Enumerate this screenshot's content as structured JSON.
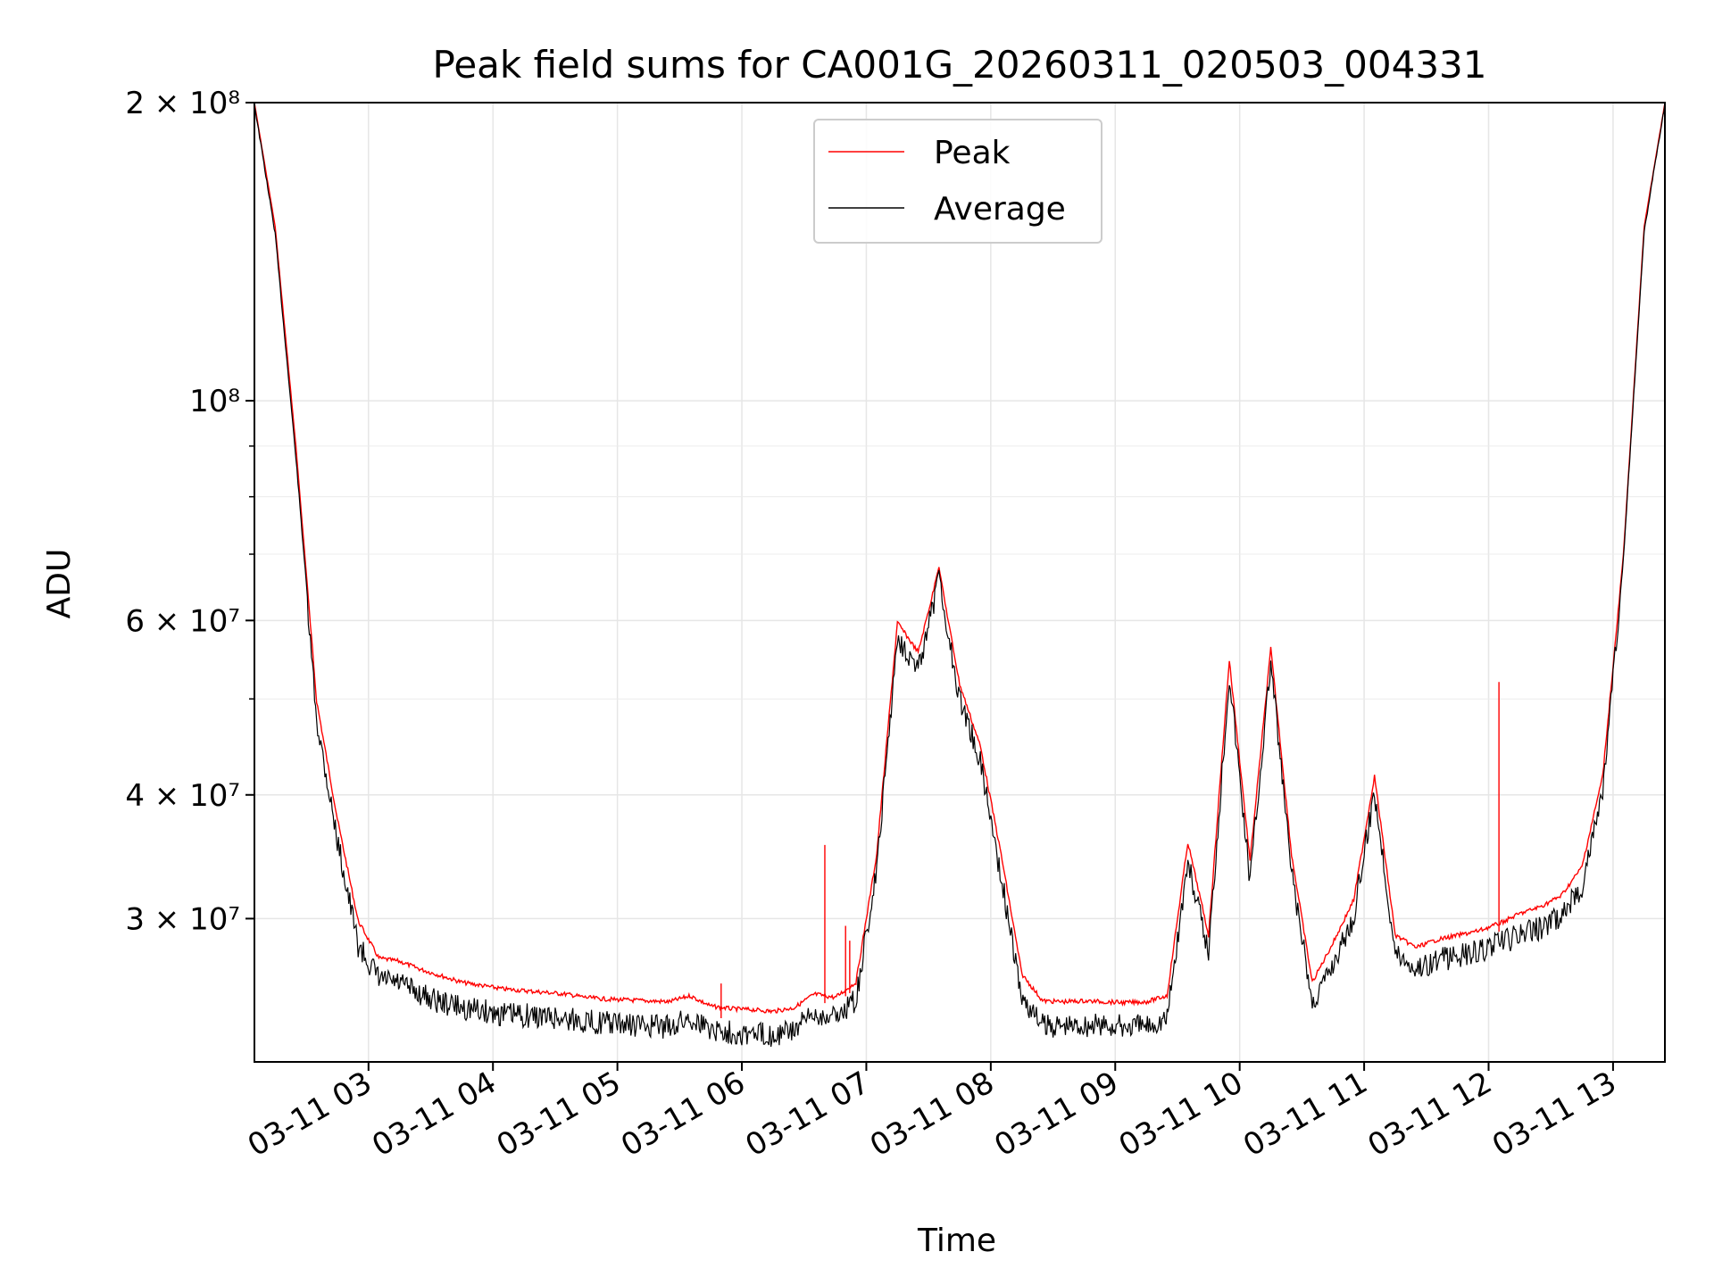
{
  "chart_data": {
    "type": "line",
    "title": "Peak field sums for CA001G_20260311_020503_004331",
    "xlabel": "Time",
    "ylabel": "ADU",
    "yscale": "log",
    "ylim": [
      21500000,
      200000000
    ],
    "xlim": [
      "2026-03-11 02:05",
      "2026-03-11 13:25"
    ],
    "grid": true,
    "legend": "upper center",
    "colors": {
      "Peak": "#ff0000",
      "Average": "#000000"
    },
    "x_ticks": [
      "03-11 03",
      "03-11 04",
      "03-11 05",
      "03-11 06",
      "03-11 07",
      "03-11 08",
      "03-11 09",
      "03-11 10",
      "03-11 11",
      "03-11 12",
      "03-11 13"
    ],
    "y_ticks": [
      {
        "value": 200000000,
        "label": "2 × 10⁸"
      },
      {
        "value": 100000000,
        "label": "10⁸"
      },
      {
        "value": 60000000,
        "label": "6 × 10⁷"
      },
      {
        "value": 40000000,
        "label": "4 × 10⁷"
      },
      {
        "value": 30000000,
        "label": "3 × 10⁷"
      }
    ],
    "x": [
      "02:05",
      "02:15",
      "02:25",
      "02:35",
      "02:45",
      "02:55",
      "03:05",
      "03:15",
      "03:25",
      "03:35",
      "03:45",
      "03:55",
      "04:05",
      "04:15",
      "04:25",
      "04:35",
      "04:45",
      "04:55",
      "05:05",
      "05:15",
      "05:25",
      "05:35",
      "05:45",
      "05:55",
      "06:05",
      "06:15",
      "06:25",
      "06:35",
      "06:45",
      "06:55",
      "07:05",
      "07:15",
      "07:25",
      "07:35",
      "07:45",
      "07:55",
      "08:05",
      "08:15",
      "08:25",
      "08:35",
      "08:45",
      "08:55",
      "09:05",
      "09:15",
      "09:25",
      "09:35",
      "09:45",
      "09:55",
      "10:05",
      "10:15",
      "10:25",
      "10:35",
      "10:45",
      "10:55",
      "11:05",
      "11:15",
      "11:25",
      "11:35",
      "11:45",
      "11:55",
      "12:05",
      "12:15",
      "12:25",
      "12:35",
      "12:45",
      "12:55",
      "13:05",
      "13:15",
      "13:25"
    ],
    "series": [
      {
        "name": "Peak",
        "values": [
          200000000,
          150000000,
          90000000,
          50000000,
          38000000,
          30000000,
          27500000,
          27300000,
          26800000,
          26400000,
          26000000,
          25800000,
          25600000,
          25500000,
          25400000,
          25300000,
          25100000,
          25000000,
          24950000,
          24900000,
          24850000,
          25200000,
          24600000,
          24450000,
          24400000,
          24300000,
          24500000,
          25300000,
          25100000,
          26000000,
          35000000,
          60000000,
          56000000,
          68000000,
          52000000,
          45000000,
          35000000,
          26500000,
          24900000,
          24850000,
          24900000,
          24850000,
          24800000,
          24850000,
          25200000,
          36000000,
          29000000,
          55000000,
          34500000,
          56500000,
          35000000,
          26000000,
          28500000,
          31500000,
          42000000,
          29000000,
          28200000,
          28700000,
          29000000,
          29300000,
          29800000,
          30500000,
          31000000,
          31800000,
          34000000,
          42000000,
          70000000,
          150000000,
          200000000
        ]
      },
      {
        "name": "Average",
        "values": [
          200000000,
          148000000,
          88000000,
          49000000,
          37000000,
          29000000,
          26800000,
          26500000,
          25900000,
          25400000,
          25100000,
          24900000,
          24700000,
          24650000,
          24550000,
          24450000,
          24300000,
          24200000,
          24100000,
          24050000,
          24000000,
          24500000,
          23900000,
          23700000,
          23600000,
          23550000,
          23800000,
          24700000,
          24600000,
          25500000,
          34500000,
          59500000,
          55000000,
          67500000,
          51500000,
          44500000,
          34000000,
          25600000,
          24100000,
          24050000,
          24100000,
          24050000,
          24000000,
          24050000,
          24500000,
          35200000,
          28500000,
          54500000,
          33800000,
          56000000,
          34300000,
          25300000,
          27800000,
          31000000,
          41500000,
          28500000,
          27500000,
          28000000,
          28300000,
          28600000,
          29100000,
          29700000,
          30200000,
          31000000,
          33300000,
          41500000,
          69500000,
          149000000,
          200000000
        ]
      }
    ],
    "spikes": [
      {
        "x": "05:50",
        "value": 25800000
      },
      {
        "x": "06:40",
        "value": 35600000
      },
      {
        "x": "06:50",
        "value": 29500000
      },
      {
        "x": "06:52",
        "value": 28500000
      },
      {
        "x": "12:05",
        "value": 52000000
      }
    ]
  }
}
